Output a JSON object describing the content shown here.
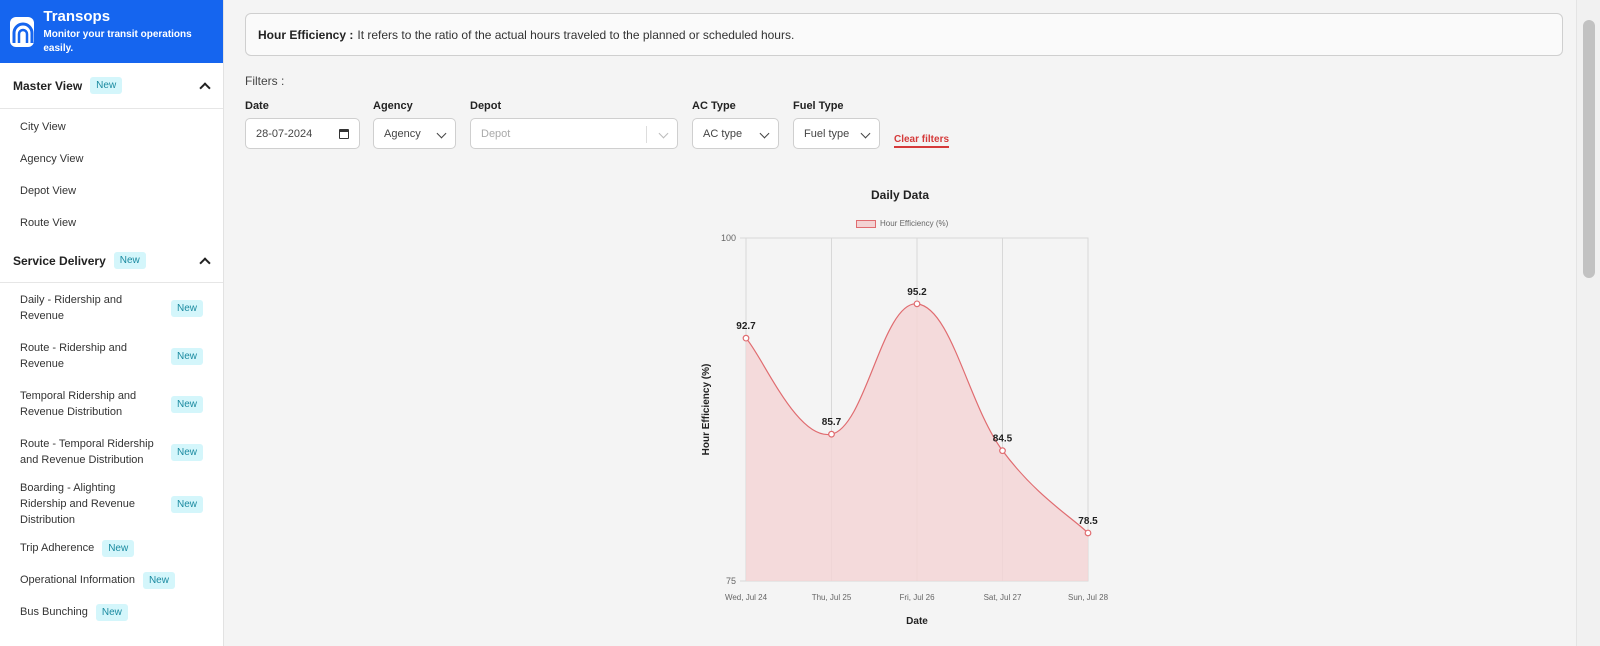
{
  "brand": {
    "title": "Transops",
    "subtitle": "Monitor your transit operations easily."
  },
  "sidebar": {
    "master": {
      "label": "Master View",
      "badge": "New",
      "items": [
        "City View",
        "Agency View",
        "Depot View",
        "Route View"
      ]
    },
    "service": {
      "label": "Service Delivery",
      "badge": "New",
      "items": [
        {
          "label": "Daily - Ridership and Revenue",
          "badge": "New"
        },
        {
          "label": "Route - Ridership and Revenue",
          "badge": "New"
        },
        {
          "label": "Temporal Ridership and Revenue Distribution",
          "badge": "New"
        },
        {
          "label": "Route - Temporal Ridership and Revenue Distribution",
          "badge": "New"
        },
        {
          "label": "Boarding - Alighting Ridership and Revenue Distribution",
          "badge": "New"
        },
        {
          "label": "Trip Adherence",
          "badge": "New"
        },
        {
          "label": "Operational Information",
          "badge": "New"
        },
        {
          "label": "Bus Bunching",
          "badge": "New"
        }
      ]
    }
  },
  "info": {
    "term": "Hour Efficiency :",
    "text": "It refers to the ratio of the actual hours traveled to the planned or scheduled hours."
  },
  "filters": {
    "label": "Filters :",
    "date": {
      "label": "Date",
      "value": "28-07-2024"
    },
    "agency": {
      "label": "Agency",
      "value": "Agency"
    },
    "depot": {
      "label": "Depot",
      "placeholder": "Depot"
    },
    "ac_type": {
      "label": "AC Type",
      "value": "AC type"
    },
    "fuel_type": {
      "label": "Fuel Type",
      "value": "Fuel type"
    },
    "clear": "Clear filters"
  },
  "chart_data": {
    "type": "area",
    "title": "Daily Data",
    "x": [
      "Wed, Jul 24",
      "Thu, Jul 25",
      "Fri, Jul 26",
      "Sat, Jul 27",
      "Sun, Jul 28"
    ],
    "series": [
      {
        "name": "Hour Efficiency (%)",
        "values": [
          92.7,
          85.7,
          95.2,
          84.5,
          78.5
        ]
      }
    ],
    "xlabel": "Date",
    "ylabel": "Hour Efficiency (%)",
    "ylim": [
      75,
      100
    ],
    "yticks": [
      75,
      100
    ],
    "grid": true,
    "legend": "top",
    "colors": {
      "line": "#e06c70",
      "fill": "#f3d5d6"
    }
  }
}
